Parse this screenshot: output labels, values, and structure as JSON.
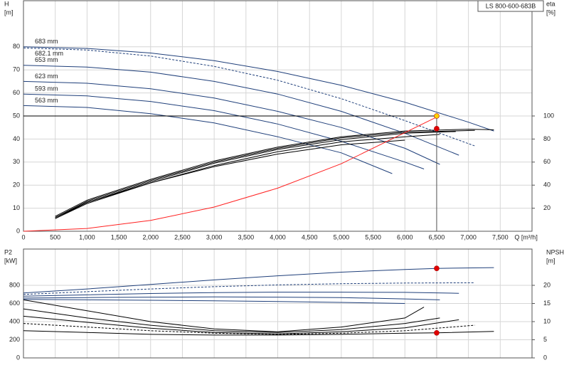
{
  "chart_data": [
    {
      "type": "line",
      "title": "LS 800-600-683B",
      "x_label": "Q [m³/h]",
      "y_label": "H",
      "y_unit": "[m]",
      "y2_label": "eta",
      "y2_unit": "[%]",
      "xlim": [
        0,
        8000
      ],
      "xticks": [
        0,
        500,
        {
          "value": 1000,
          "label": "1,000"
        },
        {
          "value": 1500,
          "label": "1,500"
        },
        {
          "value": 2000,
          "label": "2,000"
        },
        {
          "value": 2500,
          "label": "2,500"
        },
        {
          "value": 3000,
          "label": "3,000"
        },
        {
          "value": 3500,
          "label": "3,500"
        },
        {
          "value": 4000,
          "label": "4,000"
        },
        {
          "value": 4500,
          "label": "4,500"
        },
        {
          "value": 5000,
          "label": "5,000"
        },
        {
          "value": 5500,
          "label": "5,500"
        },
        {
          "value": 6000,
          "label": "6,000"
        },
        {
          "value": 6500,
          "label": "6,500"
        },
        {
          "value": 7000,
          "label": "7,000"
        },
        {
          "value": 7500,
          "label": "7,500"
        }
      ],
      "ylim": [
        0,
        100
      ],
      "yticks": [
        0,
        10,
        20,
        30,
        40,
        50,
        60,
        70,
        80
      ],
      "y2lim": [
        0,
        200
      ],
      "y2ticks": [
        20,
        40,
        60,
        80,
        100
      ],
      "grid": true,
      "series": [
        {
          "name": "683 mm",
          "color": "#1f3f7a",
          "x": [
            0,
            1000,
            2000,
            3000,
            4000,
            5000,
            6000,
            7000,
            7400
          ],
          "values": [
            80,
            79.3,
            77.3,
            74,
            69.3,
            63.3,
            56,
            47.3,
            43.5
          ]
        },
        {
          "name": "682.1 mm",
          "color": "#1f3f7a",
          "dashed": true,
          "x": [
            0,
            1000,
            2000,
            3000,
            4000,
            5000,
            6000,
            7100
          ],
          "values": [
            79.5,
            78.6,
            76,
            71.5,
            65.5,
            57.5,
            48,
            37
          ]
        },
        {
          "name": "653 mm",
          "color": "#1f3f7a",
          "x": [
            0,
            1000,
            2000,
            3000,
            4000,
            5000,
            6000,
            6850
          ],
          "values": [
            72,
            71.2,
            69,
            65,
            59.5,
            52,
            42.5,
            33
          ]
        },
        {
          "name": "623 mm",
          "color": "#1f3f7a",
          "x": [
            0,
            1000,
            2000,
            3000,
            4000,
            5000,
            6000,
            6550
          ],
          "values": [
            65,
            64.2,
            61.8,
            57.8,
            52,
            45,
            36,
            29
          ]
        },
        {
          "name": "593 mm",
          "color": "#1f3f7a",
          "x": [
            0,
            1000,
            2000,
            3000,
            4000,
            5000,
            6000,
            6300
          ],
          "values": [
            59.5,
            58.7,
            56.3,
            52.3,
            46.5,
            39,
            30,
            27
          ]
        },
        {
          "name": "563 mm",
          "color": "#1f3f7a",
          "x": [
            0,
            1000,
            2000,
            3000,
            4000,
            5000,
            5800
          ],
          "values": [
            54.5,
            53.7,
            51,
            47,
            41,
            34,
            25
          ]
        },
        {
          "color": "#000000",
          "axis": "y2",
          "x": [
            500,
            1000,
            2000,
            3000,
            4000,
            5000,
            6000,
            7000,
            7400
          ],
          "values": [
            13,
            27,
            45,
            61,
            73,
            82,
            87,
            88.5,
            88
          ]
        },
        {
          "color": "#000000",
          "axis": "y2",
          "x": [
            500,
            1000,
            2000,
            3000,
            4000,
            5000,
            6000,
            7100
          ],
          "values": [
            12,
            26,
            44,
            60,
            72,
            81,
            86,
            87.5
          ]
        },
        {
          "color": "#000000",
          "axis": "y2",
          "x": [
            500,
            1000,
            2000,
            3000,
            4000,
            5000,
            6000,
            6800
          ],
          "values": [
            11,
            25,
            43,
            59,
            71,
            79.5,
            85,
            86.5
          ]
        },
        {
          "color": "#000000",
          "axis": "y2",
          "x": [
            500,
            1000,
            2000,
            3000,
            4000,
            5000,
            6000,
            6550
          ],
          "values": [
            11,
            24,
            42,
            57,
            69,
            77.5,
            82,
            84
          ]
        },
        {
          "color": "#000000",
          "axis": "y2",
          "x": [
            500,
            1000,
            2000,
            3000,
            4000,
            5000,
            6000
          ],
          "values": [
            12,
            25,
            42,
            56,
            67,
            75,
            79
          ]
        },
        {
          "color": "#ff2020",
          "x": [
            0,
            1000,
            2000,
            3000,
            4000,
            5000,
            6500
          ],
          "values": [
            0,
            1.2,
            4.7,
            10.5,
            18.7,
            29.3,
            49.5
          ]
        }
      ],
      "points": [
        {
          "x": 6500,
          "y": 50,
          "color": "#ffd200",
          "duty": true
        },
        {
          "x": 6500,
          "y": 89,
          "axis": "y2",
          "color": "#e00000"
        }
      ]
    },
    {
      "type": "line",
      "y_label": "P2",
      "y_unit": "[kW]",
      "y2_label": "NPSH",
      "y2_unit": "[m]",
      "xlim": [
        0,
        8000
      ],
      "ylim": [
        0,
        1200
      ],
      "yticks": [
        0,
        200,
        400,
        600,
        800
      ],
      "y2lim": [
        0,
        30
      ],
      "y2ticks": [
        0,
        5,
        10,
        15,
        20
      ],
      "grid": true,
      "series": [
        {
          "color": "#1f3f7a",
          "x": [
            0,
            1000,
            2000,
            3000,
            4000,
            5000,
            6000,
            6500,
            7400
          ],
          "values": [
            715,
            760,
            810,
            860,
            905,
            945,
            975,
            987,
            995
          ]
        },
        {
          "color": "#1f3f7a",
          "dashed": true,
          "x": [
            0,
            1000,
            2000,
            3000,
            4000,
            5000,
            6000,
            7100
          ],
          "values": [
            700,
            730,
            760,
            785,
            805,
            818,
            825,
            828
          ]
        },
        {
          "color": "#1f3f7a",
          "x": [
            0,
            1000,
            2000,
            3000,
            4000,
            5000,
            6000,
            6850
          ],
          "values": [
            680,
            695,
            710,
            720,
            725,
            725,
            722,
            712
          ]
        },
        {
          "color": "#1f3f7a",
          "x": [
            0,
            1000,
            2000,
            3000,
            4000,
            5000,
            6000,
            6550
          ],
          "values": [
            660,
            665,
            670,
            672,
            670,
            665,
            650,
            640
          ]
        },
        {
          "color": "#1f3f7a",
          "x": [
            0,
            1000,
            2000,
            3000,
            4000,
            5000,
            6000
          ],
          "values": [
            645,
            640,
            635,
            630,
            622,
            612,
            600
          ]
        },
        {
          "color": "#000000",
          "axis": "y2",
          "x": [
            0,
            1000,
            2000,
            3000,
            4000,
            5000,
            6000,
            6500,
            7400
          ],
          "values": [
            7.5,
            7,
            6.5,
            6.3,
            6.3,
            6.5,
            6.8,
            6.9,
            7.3
          ]
        },
        {
          "color": "#000000",
          "axis": "y2",
          "dashed": true,
          "x": [
            0,
            1000,
            2000,
            3000,
            4000,
            5000,
            6000,
            7100
          ],
          "values": [
            9.5,
            8.5,
            7.5,
            6.8,
            6.5,
            6.8,
            7.5,
            9
          ]
        },
        {
          "color": "#000000",
          "axis": "y2",
          "x": [
            0,
            1000,
            2000,
            3000,
            4000,
            5000,
            6000,
            6850
          ],
          "values": [
            11.5,
            9.8,
            8.2,
            7,
            6.6,
            7.2,
            8.3,
            10.5
          ]
        },
        {
          "color": "#000000",
          "axis": "y2",
          "x": [
            0,
            1000,
            2000,
            3000,
            4000,
            5000,
            6000,
            6550
          ],
          "values": [
            13.5,
            11,
            9,
            7.5,
            7,
            7.8,
            9.5,
            11
          ]
        },
        {
          "color": "#000000",
          "axis": "y2",
          "x": [
            0,
            1000,
            2000,
            3000,
            4000,
            5000,
            6000,
            6300
          ],
          "values": [
            16,
            13,
            10,
            8,
            7.2,
            8.5,
            11,
            14
          ]
        }
      ],
      "points": [
        {
          "x": 6500,
          "y": 987,
          "color": "#e00000"
        },
        {
          "x": 6500,
          "y": 6.9,
          "axis": "y2",
          "color": "#e00000"
        }
      ]
    }
  ]
}
